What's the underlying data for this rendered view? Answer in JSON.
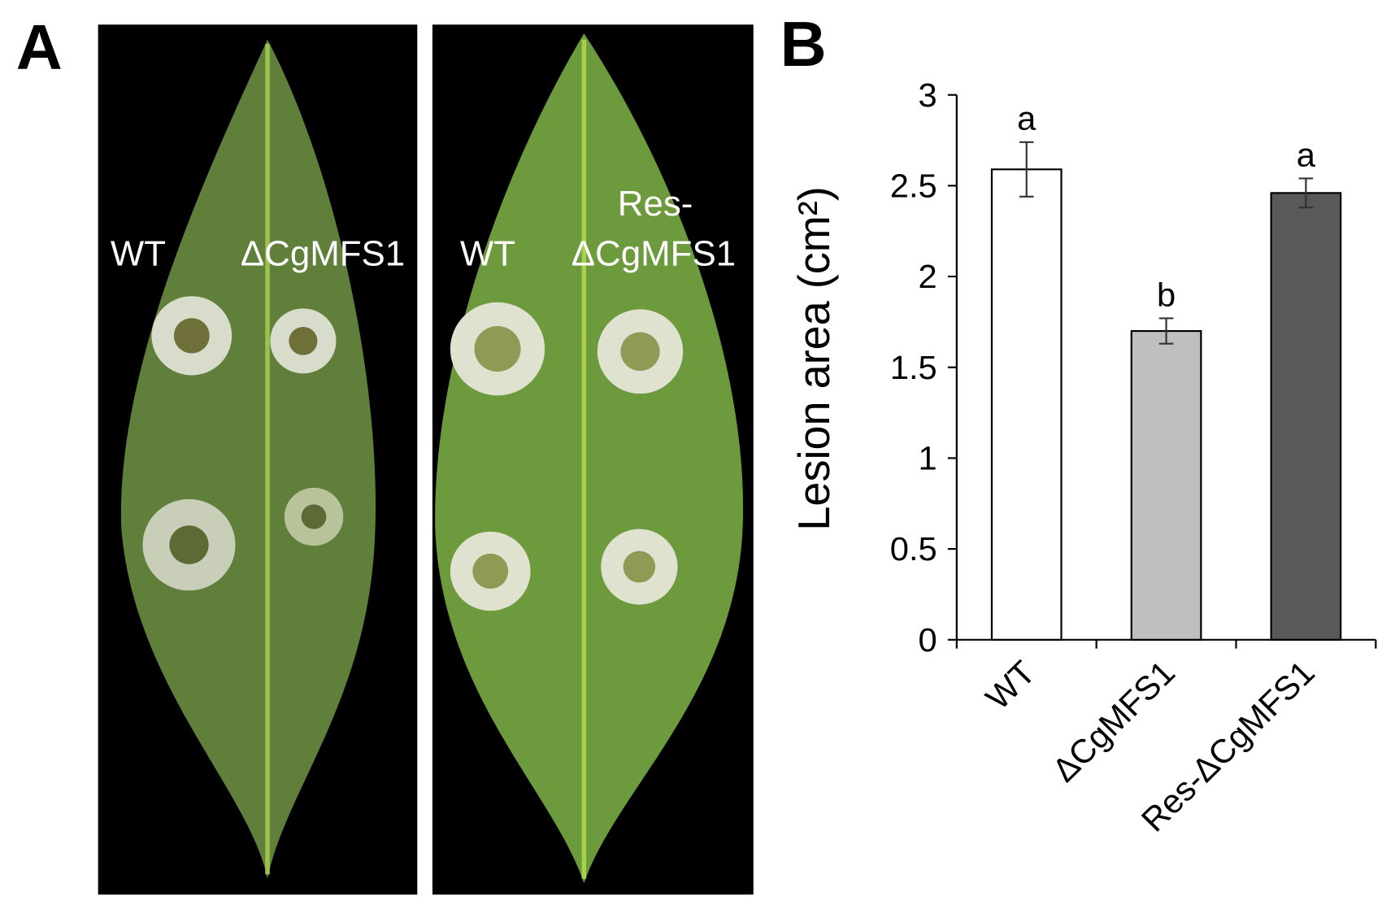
{
  "figure": {
    "panel_a": {
      "label": "A",
      "leaf_labels": [
        "WT",
        "ΔCgMFS1",
        "WT",
        "Res-",
        "ΔCgMFS1"
      ]
    },
    "panel_b": {
      "label": "B"
    }
  },
  "chart_data": {
    "type": "bar",
    "y_label": "Lesion area (cm²)",
    "categories": [
      "WT",
      "ΔCgMFS1",
      "Res-ΔCgMFS1"
    ],
    "values": [
      2.59,
      1.7,
      2.46
    ],
    "errors": [
      0.15,
      0.07,
      0.08
    ],
    "annotations": [
      "a",
      "b",
      "a"
    ],
    "colors": [
      "#ffffff",
      "#bfbfbf",
      "#595959"
    ],
    "ylim": [
      0,
      3
    ],
    "yticks": [
      0,
      0.5,
      1,
      1.5,
      2,
      2.5,
      3
    ]
  }
}
